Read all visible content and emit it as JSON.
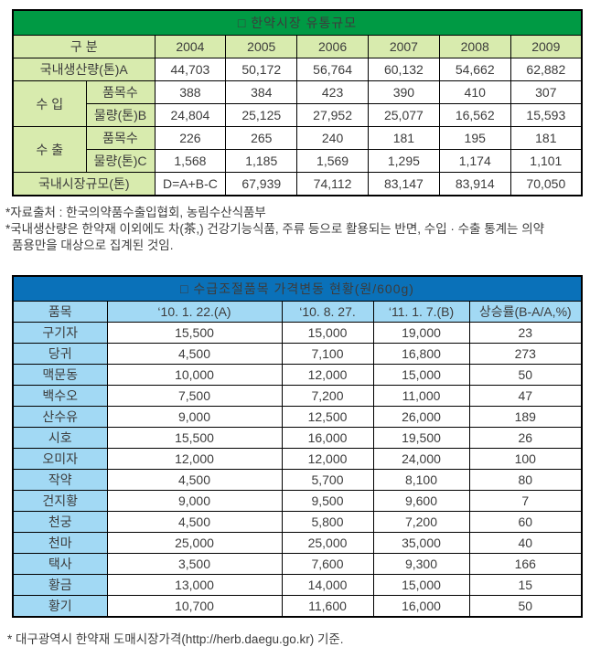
{
  "colors": {
    "green_title_bg": "#009a44",
    "green_cell_bg": "#d8ebae",
    "blue_title_bg": "#0a71b9",
    "blue_cell_bg": "#a2d9f4",
    "border": "#000000",
    "text": "#3c3c3c"
  },
  "table1": {
    "title": "□ 한약시장 유통규모",
    "col_header": "구 분",
    "years": [
      "2004",
      "2005",
      "2006",
      "2007",
      "2008",
      "2009"
    ],
    "production": {
      "label": "국내생산량(톤)A",
      "values": [
        "44,703",
        "50,172",
        "56,764",
        "60,132",
        "54,662",
        "62,882"
      ]
    },
    "import": {
      "label": "수 입",
      "items": {
        "label": "품목수",
        "values": [
          "388",
          "384",
          "423",
          "390",
          "410",
          "307"
        ]
      },
      "volume": {
        "label": "물량(톤)B",
        "values": [
          "24,804",
          "25,125",
          "27,952",
          "25,077",
          "16,562",
          "15,593"
        ]
      }
    },
    "export": {
      "label": "수 출",
      "items": {
        "label": "품목수",
        "values": [
          "226",
          "265",
          "240",
          "181",
          "195",
          "181"
        ]
      },
      "volume": {
        "label": "물량(톤)C",
        "values": [
          "1,568",
          "1,185",
          "1,569",
          "1,295",
          "1,174",
          "1,101"
        ]
      }
    },
    "market": {
      "label": "국내시장규모(톤)",
      "values": [
        "D=A+B-C",
        "67,939",
        "74,112",
        "83,147",
        "83,914",
        "70,050"
      ]
    }
  },
  "notes": {
    "line1": "*자료출처 : 한국의약품수출입협회, 농림수산식품부",
    "line2": "*국내생산량은 한약재 이외에도 차(茶,) 건강기능식품, 주류 등으로 활용되는 반면, 수입 · 수출 통계는 의약",
    "line3": "품용만을 대상으로 집계된 것임."
  },
  "table2": {
    "title": "□ 수급조절품목 가격변동 현황(원/600g)",
    "headers": [
      "품목",
      "‘10. 1. 22.(A)",
      "‘10. 8. 27.",
      "‘11. 1. 7.(B)",
      "상승률(B-A/A,%)"
    ],
    "rows": [
      [
        "구기자",
        "15,500",
        "15,000",
        "19,000",
        "23"
      ],
      [
        "당귀",
        "4,500",
        "7,100",
        "16,800",
        "273"
      ],
      [
        "맥문동",
        "10,000",
        "12,000",
        "15,000",
        "50"
      ],
      [
        "백수오",
        "7,500",
        "7,200",
        "11,000",
        "47"
      ],
      [
        "산수유",
        "9,000",
        "12,500",
        "26,000",
        "189"
      ],
      [
        "시호",
        "15,500",
        "16,000",
        "19,500",
        "26"
      ],
      [
        "오미자",
        "12,000",
        "12,000",
        "24,000",
        "100"
      ],
      [
        "작약",
        "4,500",
        "5,700",
        "8,100",
        "80"
      ],
      [
        "건지황",
        "9,000",
        "9,500",
        "9,600",
        "7"
      ],
      [
        "천궁",
        "4,500",
        "5,800",
        "7,200",
        "60"
      ],
      [
        "천마",
        "25,000",
        "25,000",
        "35,000",
        "40"
      ],
      [
        "택사",
        "3,500",
        "7,600",
        "9,300",
        "166"
      ],
      [
        "황금",
        "13,000",
        "14,000",
        "15,000",
        "15"
      ],
      [
        "황기",
        "10,700",
        "11,600",
        "16,000",
        "50"
      ]
    ]
  },
  "footer": "* 대구광역시 한약재 도매시장가격(http://herb.daegu.go.kr) 기준."
}
